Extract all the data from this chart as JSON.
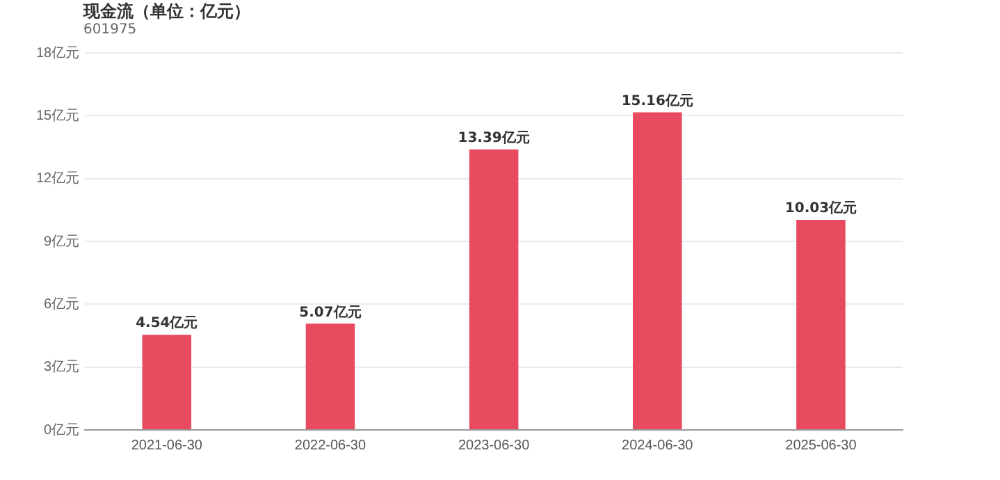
{
  "chart_data": {
    "type": "bar",
    "title": "现金流（单位：亿元）",
    "subtitle": "601975",
    "categories": [
      "2021-06-30",
      "2022-06-30",
      "2023-06-30",
      "2024-06-30",
      "2025-06-30"
    ],
    "values": [
      4.54,
      5.07,
      13.39,
      15.16,
      10.03
    ],
    "value_labels": [
      "4.54亿元",
      "5.07亿元",
      "13.39亿元",
      "15.16亿元",
      "10.03亿元"
    ],
    "color": "#e84a5f",
    "ylim": [
      0,
      18
    ],
    "yticks": [
      {
        "value": 0,
        "label": "0亿元"
      },
      {
        "value": 3,
        "label": "3亿元"
      },
      {
        "value": 6,
        "label": "6亿元"
      },
      {
        "value": 9,
        "label": "9亿元"
      },
      {
        "value": 12,
        "label": "12亿元"
      },
      {
        "value": 15,
        "label": "15亿元"
      },
      {
        "value": 18,
        "label": "18亿元"
      }
    ],
    "grid": "y",
    "legend": false
  }
}
